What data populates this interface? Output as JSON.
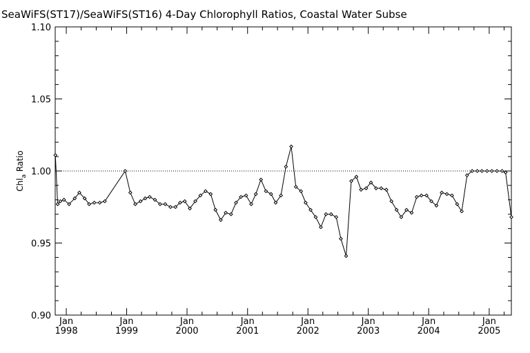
{
  "chart_data": {
    "type": "line",
    "title": "SeaWiFS(ST17)/SeaWiFS(ST16) 4-Day Chlorophyll Ratios, Coastal Water Subse",
    "ylabel": "Chl",
    "ylabel_sub": "a",
    "ylabel_suffix": " Ratio",
    "xlabel": "",
    "ylim": [
      0.9,
      1.1
    ],
    "y_ticks": [
      "0.90",
      "0.95",
      "1.00",
      "1.05",
      "1.10"
    ],
    "reference_line": 1.0,
    "x_range": [
      "1997-10-26",
      "2005-05-15"
    ],
    "x_ticks": [
      {
        "month": "Jan",
        "year": "1998",
        "date": "1998-01-01"
      },
      {
        "month": "Jan",
        "year": "1999",
        "date": "1999-01-01"
      },
      {
        "month": "Jan",
        "year": "2000",
        "date": "2000-01-01"
      },
      {
        "month": "Jan",
        "year": "2001",
        "date": "2001-01-01"
      },
      {
        "month": "Jan",
        "year": "2002",
        "date": "2002-01-01"
      },
      {
        "month": "Jan",
        "year": "2003",
        "date": "2003-01-01"
      },
      {
        "month": "Jan",
        "year": "2004",
        "date": "2004-01-01"
      },
      {
        "month": "Jan",
        "year": "2005",
        "date": "2005-01-01"
      }
    ],
    "grid": false,
    "marker": "diamond",
    "line_color": "#000000",
    "series": [
      {
        "x": [
          "1997-10-27",
          "1997-11-10",
          "1997-11-26",
          "1997-12-18",
          "1998-01-18",
          "1998-02-21",
          "1998-03-21",
          "1998-04-22",
          "1998-05-19",
          "1998-06-19",
          "1998-07-22",
          "1998-08-22",
          "1998-12-23",
          "1999-01-23",
          "1999-02-22",
          "1999-03-26",
          "1999-04-23",
          "1999-05-20",
          "1999-06-21",
          "1999-07-22",
          "1999-08-22",
          "1999-09-23",
          "1999-10-23",
          "1999-11-20",
          "1999-12-18",
          "2000-01-18",
          "2000-02-20",
          "2000-03-22",
          "2000-04-22",
          "2000-05-23",
          "2000-06-21",
          "2000-07-23",
          "2000-08-22",
          "2000-09-23",
          "2000-10-23",
          "2000-11-22",
          "2000-12-23",
          "2001-01-23",
          "2001-02-20",
          "2001-03-23",
          "2001-04-22",
          "2001-05-23",
          "2001-06-20",
          "2001-07-22",
          "2001-08-21",
          "2001-09-22",
          "2001-10-20",
          "2001-11-20",
          "2001-12-18",
          "2002-01-17",
          "2002-02-17",
          "2002-03-20",
          "2002-04-20",
          "2002-05-21",
          "2002-06-21",
          "2002-07-19",
          "2002-08-20",
          "2002-09-20",
          "2002-10-21",
          "2002-11-18",
          "2002-12-19",
          "2003-01-17",
          "2003-02-17",
          "2003-03-20",
          "2003-04-20",
          "2003-05-21",
          "2003-06-21",
          "2003-07-19",
          "2003-08-20",
          "2003-09-20",
          "2003-10-21",
          "2003-11-18",
          "2003-12-19",
          "2004-01-17",
          "2004-02-17",
          "2004-03-20",
          "2004-04-20",
          "2004-05-21",
          "2004-06-21",
          "2004-07-19",
          "2004-08-20",
          "2004-09-20",
          "2004-10-21",
          "2004-11-18",
          "2004-12-19",
          "2005-01-17",
          "2005-02-17",
          "2005-03-20",
          "2005-04-10",
          "2005-05-15"
        ],
        "y": [
          1.011,
          0.977,
          0.979,
          0.98,
          0.977,
          0.981,
          0.985,
          0.981,
          0.977,
          0.978,
          0.978,
          0.979,
          1.0,
          0.985,
          0.977,
          0.979,
          0.981,
          0.982,
          0.98,
          0.977,
          0.977,
          0.975,
          0.975,
          0.978,
          0.979,
          0.974,
          0.979,
          0.983,
          0.986,
          0.984,
          0.973,
          0.966,
          0.971,
          0.97,
          0.978,
          0.982,
          0.983,
          0.977,
          0.984,
          0.994,
          0.986,
          0.984,
          0.978,
          0.983,
          1.003,
          1.017,
          0.989,
          0.986,
          0.978,
          0.973,
          0.968,
          0.961,
          0.97,
          0.97,
          0.968,
          0.953,
          0.941,
          0.993,
          0.996,
          0.987,
          0.988,
          0.992,
          0.988,
          0.988,
          0.987,
          0.979,
          0.973,
          0.968,
          0.973,
          0.971,
          0.982,
          0.983,
          0.983,
          0.979,
          0.976,
          0.985,
          0.984,
          0.983,
          0.977,
          0.972,
          0.997,
          1.0,
          1.0,
          1.0,
          1.0,
          1.0,
          1.0,
          1.0,
          0.999,
          0.968
        ]
      }
    ]
  }
}
